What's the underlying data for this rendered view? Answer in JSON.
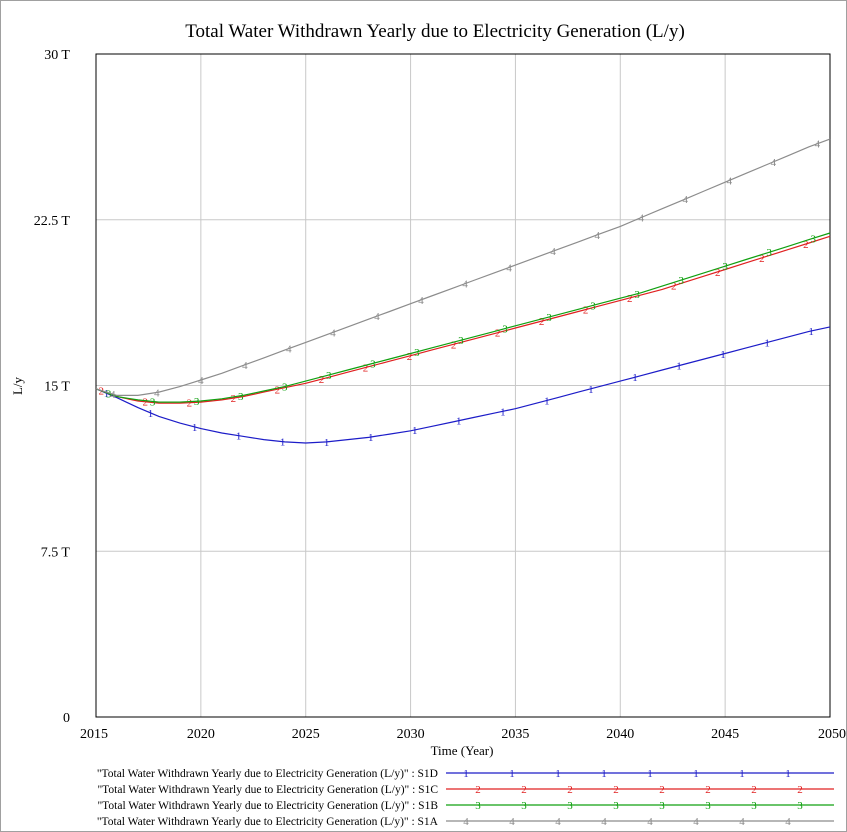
{
  "chart_data": {
    "type": "line",
    "title": "Total Water Withdrawn Yearly due to Electricity Generation (L/y)",
    "xlabel": "Time (Year)",
    "ylabel": "L/y",
    "xlim": [
      2015,
      2050
    ],
    "ylim": [
      0,
      30
    ],
    "x_ticks": [
      "2015",
      "2020",
      "2025",
      "2030",
      "2035",
      "2040",
      "2045",
      "2050"
    ],
    "y_ticks": [
      "0",
      "7.5 T",
      "15 T",
      "22.5 T",
      "30 T"
    ],
    "grid": true,
    "legend_position": "bottom",
    "x": [
      2015,
      2016,
      2017,
      2018,
      2019,
      2020,
      2021,
      2022,
      2023,
      2024,
      2025,
      2026,
      2027,
      2028,
      2029,
      2030,
      2031,
      2032,
      2033,
      2034,
      2035,
      2036,
      2037,
      2038,
      2039,
      2040,
      2041,
      2042,
      2043,
      2044,
      2045,
      2046,
      2047,
      2048,
      2049,
      2050
    ],
    "series": [
      {
        "label": "\"Total Water Withdrawn Yearly due to Electricity Generation (L/y)\" : S1D",
        "marker": "1",
        "color": "#1c1cc8",
        "values": [
          14.85,
          14.45,
          14.0,
          13.6,
          13.3,
          13.05,
          12.85,
          12.7,
          12.55,
          12.45,
          12.4,
          12.45,
          12.55,
          12.65,
          12.8,
          12.95,
          13.15,
          13.35,
          13.55,
          13.75,
          13.95,
          14.2,
          14.45,
          14.7,
          14.95,
          15.2,
          15.45,
          15.7,
          15.95,
          16.2,
          16.45,
          16.7,
          16.95,
          17.2,
          17.45,
          17.65
        ]
      },
      {
        "label": "\"Total Water Withdrawn Yearly due to Electricity Generation (L/y)\" : S1C",
        "marker": "2",
        "color": "#e02020",
        "values": [
          14.85,
          14.5,
          14.3,
          14.2,
          14.2,
          14.25,
          14.35,
          14.5,
          14.7,
          14.9,
          15.1,
          15.35,
          15.6,
          15.85,
          16.1,
          16.35,
          16.6,
          16.85,
          17.1,
          17.35,
          17.6,
          17.85,
          18.1,
          18.35,
          18.6,
          18.85,
          19.1,
          19.35,
          19.65,
          19.95,
          20.25,
          20.55,
          20.85,
          21.15,
          21.45,
          21.75
        ]
      },
      {
        "label": "\"Total Water Withdrawn Yearly due to Electricity Generation (L/y)\" : S1B",
        "marker": "3",
        "color": "#10a010",
        "values": [
          14.85,
          14.5,
          14.35,
          14.25,
          14.25,
          14.3,
          14.4,
          14.55,
          14.75,
          14.95,
          15.2,
          15.45,
          15.7,
          15.95,
          16.2,
          16.45,
          16.7,
          16.95,
          17.2,
          17.45,
          17.7,
          17.95,
          18.2,
          18.45,
          18.7,
          18.95,
          19.2,
          19.5,
          19.8,
          20.1,
          20.4,
          20.7,
          21.0,
          21.3,
          21.6,
          21.9
        ]
      },
      {
        "label": "\"Total Water Withdrawn Yearly due to Electricity Generation (L/y)\" : S1A",
        "marker": "4",
        "color": "#8c8c8c",
        "values": [
          14.85,
          14.55,
          14.55,
          14.7,
          14.95,
          15.25,
          15.55,
          15.9,
          16.25,
          16.6,
          16.95,
          17.3,
          17.65,
          18.0,
          18.35,
          18.7,
          19.05,
          19.4,
          19.75,
          20.1,
          20.45,
          20.8,
          21.15,
          21.5,
          21.85,
          22.2,
          22.6,
          23.0,
          23.4,
          23.8,
          24.2,
          24.6,
          25.0,
          25.4,
          25.8,
          26.15
        ]
      }
    ]
  }
}
